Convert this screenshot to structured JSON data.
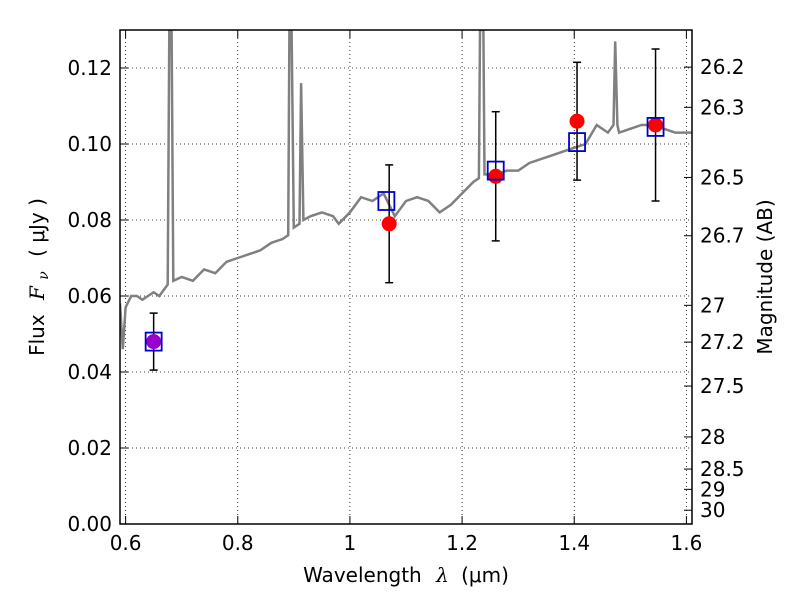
{
  "chart_data": {
    "type": "scatter",
    "xlabel": "Wavelength",
    "xlabel_symbol": "λ",
    "xlabel_unit": "(μm)",
    "ylabel": "Flux",
    "ylabel_symbol": "F",
    "ylabel_subscript": "ν",
    "ylabel_unit": "( μJy )",
    "ylabel_right": "Magnitude (AB)",
    "xlim": [
      0.59,
      1.61
    ],
    "ylim": [
      0.0,
      0.13
    ],
    "grid": true,
    "x_ticks": [
      0.6,
      0.8,
      1.0,
      1.2,
      1.4,
      1.6
    ],
    "x_tick_labels": [
      "0.6",
      "0.8",
      "1",
      "1.2",
      "1.4",
      "1.6"
    ],
    "y_ticks": [
      0.0,
      0.02,
      0.04,
      0.06,
      0.08,
      0.1,
      0.12
    ],
    "y_tick_labels": [
      "0.00",
      "0.02",
      "0.04",
      "0.06",
      "0.08",
      "0.10",
      "0.12"
    ],
    "right_ticks": [
      {
        "mag": 26.2,
        "label": "26.2"
      },
      {
        "mag": 26.3,
        "label": "26.3"
      },
      {
        "mag": 26.5,
        "label": "26.5"
      },
      {
        "mag": 26.7,
        "label": "26.7"
      },
      {
        "mag": 27.0,
        "label": "27"
      },
      {
        "mag": 27.2,
        "label": "27.2"
      },
      {
        "mag": 27.5,
        "label": "27.5"
      },
      {
        "mag": 28.0,
        "label": "28"
      },
      {
        "mag": 28.5,
        "label": "28.5"
      },
      {
        "mag": 29.0,
        "label": "29"
      },
      {
        "mag": 30.0,
        "label": "30"
      }
    ],
    "series": [
      {
        "kind": "spectrum",
        "color": "#808080",
        "points": [
          [
            0.59,
            0.058
          ],
          [
            0.595,
            0.046
          ],
          [
            0.6,
            0.057
          ],
          [
            0.61,
            0.06
          ],
          [
            0.62,
            0.06
          ],
          [
            0.63,
            0.059
          ],
          [
            0.64,
            0.06
          ],
          [
            0.65,
            0.061
          ],
          [
            0.66,
            0.06
          ],
          [
            0.67,
            0.062
          ],
          [
            0.675,
            0.063
          ],
          [
            0.678,
            0.13
          ],
          [
            0.682,
            0.13
          ],
          [
            0.685,
            0.064
          ],
          [
            0.7,
            0.065
          ],
          [
            0.72,
            0.064
          ],
          [
            0.74,
            0.067
          ],
          [
            0.76,
            0.066
          ],
          [
            0.78,
            0.069
          ],
          [
            0.8,
            0.07
          ],
          [
            0.82,
            0.071
          ],
          [
            0.84,
            0.072
          ],
          [
            0.86,
            0.074
          ],
          [
            0.88,
            0.075
          ],
          [
            0.89,
            0.076
          ],
          [
            0.892,
            0.13
          ],
          [
            0.896,
            0.13
          ],
          [
            0.9,
            0.078
          ],
          [
            0.91,
            0.079
          ],
          [
            0.913,
            0.116
          ],
          [
            0.917,
            0.08
          ],
          [
            0.93,
            0.081
          ],
          [
            0.95,
            0.082
          ],
          [
            0.97,
            0.081
          ],
          [
            0.98,
            0.079
          ],
          [
            1.0,
            0.082
          ],
          [
            1.02,
            0.086
          ],
          [
            1.04,
            0.085
          ],
          [
            1.06,
            0.087
          ],
          [
            1.08,
            0.081
          ],
          [
            1.1,
            0.085
          ],
          [
            1.12,
            0.086
          ],
          [
            1.14,
            0.085
          ],
          [
            1.16,
            0.082
          ],
          [
            1.18,
            0.084
          ],
          [
            1.2,
            0.087
          ],
          [
            1.22,
            0.09
          ],
          [
            1.23,
            0.091
          ],
          [
            1.232,
            0.13
          ],
          [
            1.238,
            0.13
          ],
          [
            1.24,
            0.092
          ],
          [
            1.26,
            0.092
          ],
          [
            1.28,
            0.093
          ],
          [
            1.3,
            0.093
          ],
          [
            1.32,
            0.095
          ],
          [
            1.34,
            0.096
          ],
          [
            1.36,
            0.097
          ],
          [
            1.38,
            0.098
          ],
          [
            1.4,
            0.099
          ],
          [
            1.42,
            0.1
          ],
          [
            1.44,
            0.105
          ],
          [
            1.46,
            0.103
          ],
          [
            1.47,
            0.105
          ],
          [
            1.473,
            0.127
          ],
          [
            1.477,
            0.105
          ],
          [
            1.48,
            0.103
          ],
          [
            1.5,
            0.104
          ],
          [
            1.52,
            0.105
          ],
          [
            1.54,
            0.105
          ],
          [
            1.56,
            0.104
          ],
          [
            1.58,
            0.103
          ],
          [
            1.6,
            0.103
          ],
          [
            1.61,
            0.103
          ]
        ]
      },
      {
        "kind": "model_boxes",
        "color": "#0000cc",
        "points": [
          {
            "x": 0.65,
            "y": 0.048
          },
          {
            "x": 1.065,
            "y": 0.085
          },
          {
            "x": 1.26,
            "y": 0.093
          },
          {
            "x": 1.405,
            "y": 0.1005
          },
          {
            "x": 1.545,
            "y": 0.1045
          }
        ]
      },
      {
        "kind": "observed",
        "color": "#ff0000",
        "points": [
          {
            "x": 0.65,
            "y": 0.048,
            "yerr": 0.0075,
            "color": "#9900cc"
          },
          {
            "x": 1.07,
            "y": 0.079,
            "yerr": 0.0155
          },
          {
            "x": 1.26,
            "y": 0.0915,
            "yerr": 0.017
          },
          {
            "x": 1.405,
            "y": 0.106,
            "yerr": 0.0155
          },
          {
            "x": 1.545,
            "y": 0.105,
            "yerr": 0.02
          }
        ]
      }
    ]
  }
}
